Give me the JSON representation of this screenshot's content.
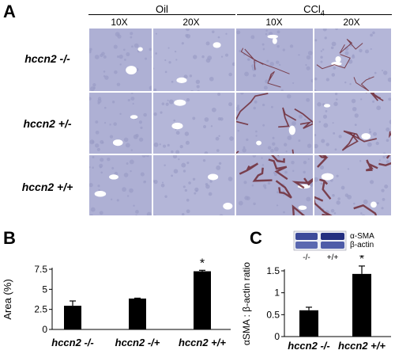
{
  "panelA": {
    "letter": "A",
    "groups": [
      "Oil",
      "CCl4"
    ],
    "columns": [
      "10X",
      "20X",
      "10X",
      "20X"
    ],
    "rows": [
      "hccn2 -/-",
      "hccn2 +/-",
      "hccn2 +/+"
    ]
  },
  "panelB": {
    "letter": "B",
    "chart_data": {
      "type": "bar",
      "categories": [
        "hccn2 -/-",
        "hccn2 -/+",
        "hccn2 +/+"
      ],
      "values": [
        2.95,
        3.85,
        7.25
      ],
      "errors": [
        0.6,
        0.05,
        0.12
      ],
      "ylabel": "Area (%)",
      "ylim": [
        0,
        7.5
      ],
      "yticks": [
        "0",
        "2.5",
        "5",
        "7.5"
      ],
      "significance": [
        "",
        "",
        "*"
      ],
      "color": "#000000"
    }
  },
  "panelC": {
    "letter": "C",
    "blot": {
      "labels": [
        "α-SMA",
        "β-actin"
      ],
      "lanes": [
        "-/-",
        "+/+"
      ]
    },
    "chart_data": {
      "type": "bar",
      "categories": [
        "hccn2 -/-",
        "hccn2 +/+"
      ],
      "values": [
        0.6,
        1.43
      ],
      "errors": [
        0.07,
        0.18
      ],
      "ylabel": "αSMA : β-actin ratio",
      "ylim": [
        0,
        1.5
      ],
      "yticks": [
        "0",
        "0.5",
        "1",
        "1.5"
      ],
      "significance": [
        "",
        "*"
      ],
      "color": "#000000"
    }
  }
}
